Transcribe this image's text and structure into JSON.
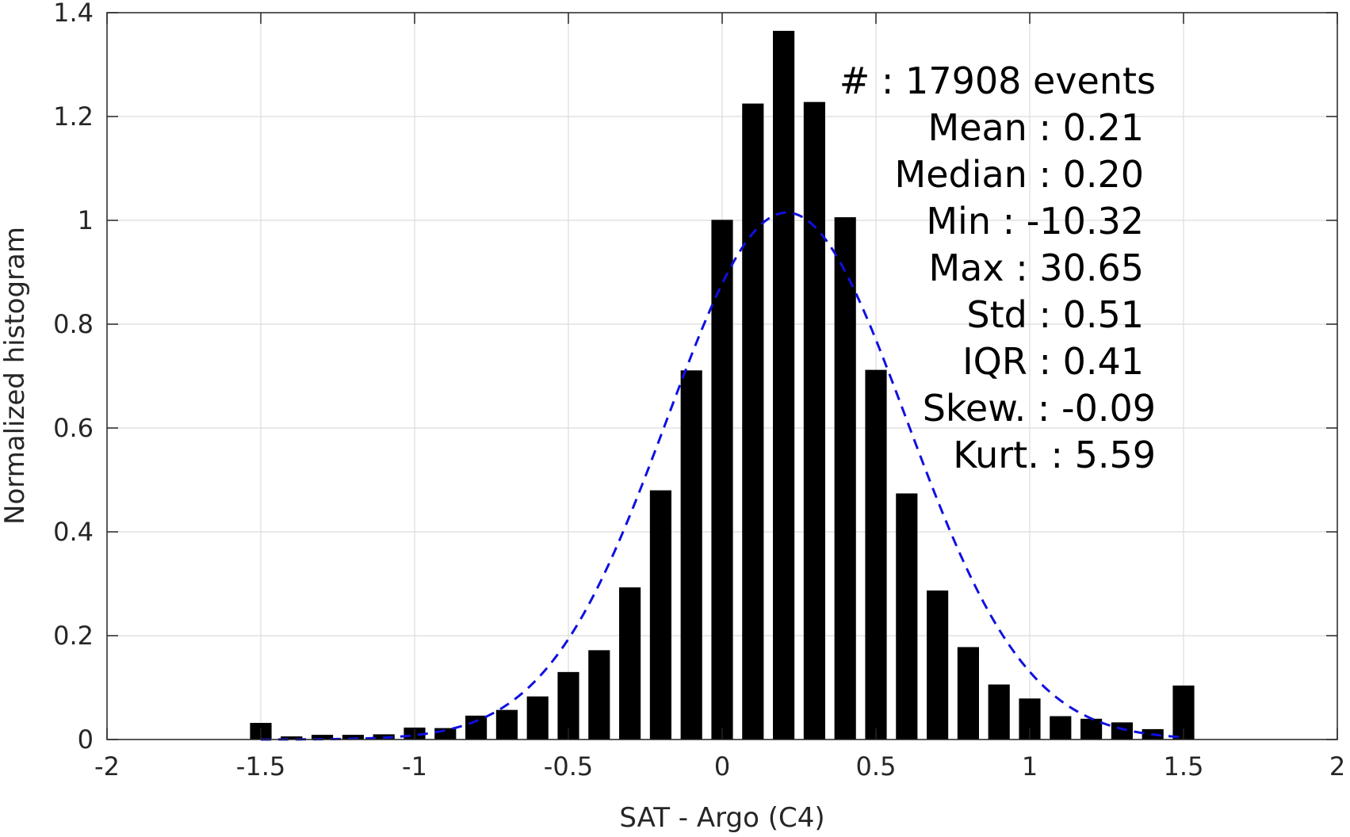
{
  "chart_data": {
    "type": "bar",
    "xlabel": "SAT - Argo (C4)",
    "ylabel": "Normalized histogram",
    "xlim": [
      -2,
      2
    ],
    "ylim": [
      0,
      1.4
    ],
    "x_ticks": [
      -2,
      -1.5,
      -1,
      -0.5,
      0,
      0.5,
      1,
      1.5,
      2
    ],
    "x_tick_labels": [
      "-2",
      "-1.5",
      "-1",
      "-0.5",
      "0",
      "0.5",
      "1",
      "1.5",
      "2"
    ],
    "y_ticks": [
      0,
      0.2,
      0.4,
      0.6,
      0.8,
      1,
      1.2,
      1.4
    ],
    "y_tick_labels": [
      "0",
      "0.2",
      "0.4",
      "0.6",
      "0.8",
      "1",
      "1.2",
      "1.4"
    ],
    "grid": true,
    "bar_color": "#000000",
    "bars": {
      "x": [
        -1.5,
        -1.4,
        -1.3,
        -1.2,
        -1.1,
        -1.0,
        -0.9,
        -0.8,
        -0.7,
        -0.6,
        -0.5,
        -0.4,
        -0.3,
        -0.2,
        -0.1,
        0.0,
        0.1,
        0.2,
        0.3,
        0.4,
        0.5,
        0.6,
        0.7,
        0.8,
        0.9,
        1.0,
        1.1,
        1.2,
        1.3,
        1.4,
        1.5
      ],
      "values": [
        0.032,
        0.006,
        0.009,
        0.009,
        0.01,
        0.023,
        0.022,
        0.046,
        0.057,
        0.083,
        0.13,
        0.172,
        0.293,
        0.48,
        0.711,
        1.001,
        1.225,
        1.365,
        1.228,
        1.006,
        0.712,
        0.474,
        0.287,
        0.178,
        0.106,
        0.079,
        0.045,
        0.04,
        0.033,
        0.02,
        0.104
      ],
      "width": 0.07
    },
    "fit_curve": {
      "style": "dashed",
      "color": "#1010e0",
      "mean": 0.21,
      "std": 0.39,
      "amplitude": 1.015,
      "x_range": [
        -1.5,
        1.5
      ]
    },
    "annotations": [
      {
        "label": "#",
        "value": ": 17908 events"
      },
      {
        "label": "Mean",
        "value": ": 0.21"
      },
      {
        "label": "Median",
        "value": ": 0.20"
      },
      {
        "label": "Min",
        "value": ": -10.32"
      },
      {
        "label": "Max",
        "value": ": 30.65"
      },
      {
        "label": "Std",
        "value": ": 0.51"
      },
      {
        "label": "IQR",
        "value": ": 0.41"
      },
      {
        "label": "Skew.",
        "value": ": -0.09"
      },
      {
        "label": "Kurt.",
        "value": ": 5.59"
      }
    ]
  }
}
